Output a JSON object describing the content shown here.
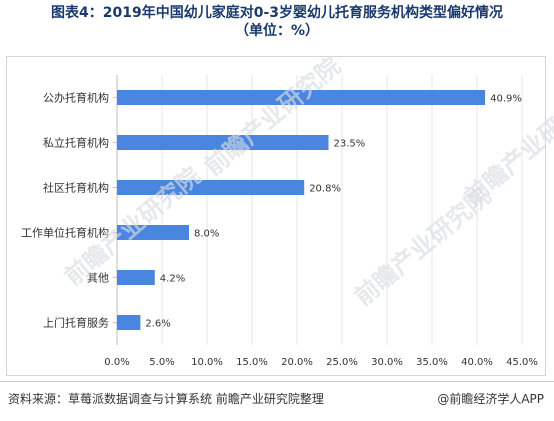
{
  "title_line1": "图表4：2019年中国幼儿家庭对0-3岁婴幼儿托育服务机构类型偏好情况",
  "title_line2": "（单位：%）",
  "source": "资料来源：草莓派数据调查与计算系统  前瞻产业研究院整理",
  "credit": "@前瞻经济学人APP",
  "watermark": "前瞻产业研究院",
  "colors": {
    "bar": "#4a86e0",
    "grid": "#e6e6e6",
    "title": "#1a3a6e"
  },
  "chart_data": {
    "type": "bar",
    "orientation": "horizontal",
    "categories": [
      "公办托育机构",
      "私立托育机构",
      "社区托育机构",
      "工作单位托育机构",
      "其他",
      "上门托育服务"
    ],
    "values": [
      40.9,
      23.5,
      20.8,
      8.0,
      4.2,
      2.6
    ],
    "value_labels": [
      "40.9%",
      "23.5%",
      "20.8%",
      "8.0%",
      "4.2%",
      "2.6%"
    ],
    "xlim": [
      0,
      45
    ],
    "ticks": [
      0,
      5,
      10,
      15,
      20,
      25,
      30,
      35,
      40,
      45
    ],
    "tick_labels": [
      "0.0%",
      "5.0%",
      "10.0%",
      "15.0%",
      "20.0%",
      "25.0%",
      "30.0%",
      "35.0%",
      "40.0%",
      "45.0%"
    ],
    "grid": "vertical",
    "legend": "none"
  }
}
